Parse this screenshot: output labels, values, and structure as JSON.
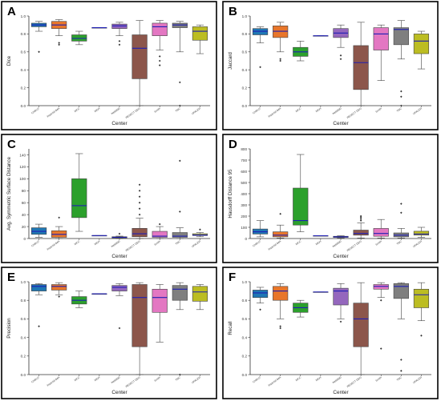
{
  "panel_letters": [
    "A",
    "B",
    "C",
    "D",
    "E",
    "F"
  ],
  "colors": {
    "frame": "#000000",
    "median": "#1f1fb4",
    "axis": "#333333"
  },
  "chart_data": [
    {
      "type": "box",
      "letter": "A",
      "xlabel": "Center",
      "ylabel": "Dice",
      "ylim": [
        0.0,
        1.0
      ],
      "yticks": [
        0.0,
        0.2,
        0.4,
        0.6,
        0.8,
        1.0
      ],
      "grid": false,
      "categories": [
        "CHRUT",
        "Imperial-IMA",
        "MCC",
        "MGH",
        "NeMIND",
        "RESECT DEG",
        "Smith",
        "TMC",
        "UPALER"
      ],
      "colors": [
        "#1f77b4",
        "#e8762b",
        "#2ca02c",
        "#6a5acd",
        "#9467bd",
        "#8c564b",
        "#e377c2",
        "#7f7f7f",
        "#bcbd22"
      ],
      "boxes": [
        {
          "min": 0.83,
          "q1": 0.88,
          "median": 0.9,
          "q3": 0.92,
          "max": 0.94,
          "outliers": [
            0.6
          ]
        },
        {
          "min": 0.78,
          "q1": 0.86,
          "median": 0.9,
          "q3": 0.94,
          "max": 0.96,
          "outliers": [
            0.7,
            0.68
          ]
        },
        {
          "min": 0.68,
          "q1": 0.72,
          "median": 0.75,
          "q3": 0.79,
          "max": 0.83,
          "outliers": []
        },
        {
          "min": 0.87,
          "q1": 0.87,
          "median": 0.87,
          "q3": 0.87,
          "max": 0.87,
          "outliers": []
        },
        {
          "min": 0.78,
          "q1": 0.86,
          "median": 0.89,
          "q3": 0.91,
          "max": 0.93,
          "outliers": [
            0.72,
            0.68
          ]
        },
        {
          "min": 0.0,
          "q1": 0.3,
          "median": 0.64,
          "q3": 0.79,
          "max": 0.95,
          "outliers": []
        },
        {
          "min": 0.62,
          "q1": 0.78,
          "median": 0.88,
          "q3": 0.92,
          "max": 0.95,
          "outliers": [
            0.55,
            0.5,
            0.45
          ]
        },
        {
          "min": 0.6,
          "q1": 0.87,
          "median": 0.9,
          "q3": 0.92,
          "max": 0.94,
          "outliers": [
            0.26,
            0.0
          ]
        },
        {
          "min": 0.58,
          "q1": 0.73,
          "median": 0.83,
          "q3": 0.88,
          "max": 0.9,
          "outliers": []
        }
      ]
    },
    {
      "type": "box",
      "letter": "B",
      "xlabel": "Center",
      "ylabel": "Jaccard",
      "ylim": [
        0.0,
        1.0
      ],
      "yticks": [
        0.0,
        0.2,
        0.4,
        0.6,
        0.8,
        1.0
      ],
      "grid": false,
      "categories": [
        "CHRUT",
        "Imperial-IMA",
        "MCC",
        "MGH",
        "NeMIND",
        "RESECT DEG",
        "Smith",
        "TMC",
        "UPALER"
      ],
      "colors": [
        "#1f77b4",
        "#e8762b",
        "#2ca02c",
        "#6a5acd",
        "#9467bd",
        "#8c564b",
        "#e377c2",
        "#7f7f7f",
        "#bcbd22"
      ],
      "boxes": [
        {
          "min": 0.7,
          "q1": 0.79,
          "median": 0.83,
          "q3": 0.86,
          "max": 0.88,
          "outliers": [
            0.43
          ]
        },
        {
          "min": 0.6,
          "q1": 0.76,
          "median": 0.83,
          "q3": 0.89,
          "max": 0.93,
          "outliers": [
            0.52,
            0.5
          ]
        },
        {
          "min": 0.5,
          "q1": 0.55,
          "median": 0.6,
          "q3": 0.65,
          "max": 0.72,
          "outliers": []
        },
        {
          "min": 0.78,
          "q1": 0.78,
          "median": 0.78,
          "q3": 0.78,
          "max": 0.78,
          "outliers": []
        },
        {
          "min": 0.65,
          "q1": 0.76,
          "median": 0.81,
          "q3": 0.86,
          "max": 0.9,
          "outliers": [
            0.56,
            0.52
          ]
        },
        {
          "min": 0.0,
          "q1": 0.18,
          "median": 0.48,
          "q3": 0.67,
          "max": 0.93,
          "outliers": []
        },
        {
          "min": 0.28,
          "q1": 0.62,
          "median": 0.8,
          "q3": 0.87,
          "max": 0.9,
          "outliers": []
        },
        {
          "min": 0.52,
          "q1": 0.68,
          "median": 0.85,
          "q3": 0.87,
          "max": 0.95,
          "outliers": [
            0.16,
            0.1,
            0.0
          ]
        },
        {
          "min": 0.41,
          "q1": 0.58,
          "median": 0.72,
          "q3": 0.8,
          "max": 0.83,
          "outliers": []
        }
      ]
    },
    {
      "type": "box",
      "letter": "C",
      "xlabel": "Center",
      "ylabel": "Avg. Symmetric Surface Distance",
      "ylim": [
        0,
        150
      ],
      "yticks": [
        0,
        20,
        40,
        60,
        80,
        100,
        120,
        140
      ],
      "grid": false,
      "categories": [
        "CHRUT",
        "Imperial-IMA",
        "MCC",
        "MGH",
        "NeMIND",
        "RESECT DEG",
        "Smith",
        "TMC",
        "UPALER"
      ],
      "colors": [
        "#1f77b4",
        "#e8762b",
        "#2ca02c",
        "#6a5acd",
        "#9467bd",
        "#8c564b",
        "#e377c2",
        "#7f7f7f",
        "#bcbd22"
      ],
      "boxes": [
        {
          "min": 2,
          "q1": 7,
          "median": 12,
          "q3": 18,
          "max": 24,
          "outliers": []
        },
        {
          "min": 0,
          "q1": 2,
          "median": 7,
          "q3": 13,
          "max": 20,
          "outliers": [
            35
          ]
        },
        {
          "min": 12,
          "q1": 35,
          "median": 55,
          "q3": 100,
          "max": 142,
          "outliers": []
        },
        {
          "min": 5,
          "q1": 5,
          "median": 5,
          "q3": 5,
          "max": 5,
          "outliers": []
        },
        {
          "min": 0,
          "q1": 1,
          "median": 2,
          "q3": 3,
          "max": 4,
          "outliers": [
            8
          ]
        },
        {
          "min": 0,
          "q1": 3,
          "median": 8,
          "q3": 17,
          "max": 34,
          "outliers": [
            40,
            50,
            60,
            70,
            80,
            90
          ]
        },
        {
          "min": 0,
          "q1": 2,
          "median": 4,
          "q3": 12,
          "max": 20,
          "outliers": [
            24
          ]
        },
        {
          "min": 0,
          "q1": 2,
          "median": 4,
          "q3": 10,
          "max": 18,
          "outliers": [
            45,
            130
          ]
        },
        {
          "min": 3,
          "q1": 5,
          "median": 6,
          "q3": 8,
          "max": 10,
          "outliers": [
            15
          ]
        }
      ]
    },
    {
      "type": "box",
      "letter": "D",
      "xlabel": "Center",
      "ylabel": "Hausdorff Distance 95",
      "ylim": [
        0,
        800
      ],
      "yticks": [
        0,
        100,
        200,
        300,
        400,
        500,
        600,
        700,
        800
      ],
      "grid": false,
      "categories": [
        "CHRUT",
        "Imperial-IMA",
        "MCC",
        "MGH",
        "NeMIND",
        "RESECT DEG",
        "Smith",
        "TMC",
        "UPALER"
      ],
      "colors": [
        "#1f77b4",
        "#e8762b",
        "#2ca02c",
        "#6a5acd",
        "#9467bd",
        "#8c564b",
        "#e377c2",
        "#7f7f7f",
        "#bcbd22"
      ],
      "boxes": [
        {
          "min": 15,
          "q1": 40,
          "median": 60,
          "q3": 85,
          "max": 160,
          "outliers": []
        },
        {
          "min": 5,
          "q1": 15,
          "median": 30,
          "q3": 60,
          "max": 120,
          "outliers": [
            220
          ]
        },
        {
          "min": 60,
          "q1": 120,
          "median": 160,
          "q3": 450,
          "max": 750,
          "outliers": []
        },
        {
          "min": 25,
          "q1": 25,
          "median": 25,
          "q3": 25,
          "max": 25,
          "outliers": []
        },
        {
          "min": 5,
          "q1": 10,
          "median": 15,
          "q3": 20,
          "max": 25,
          "outliers": []
        },
        {
          "min": 5,
          "q1": 30,
          "median": 45,
          "q3": 75,
          "max": 140,
          "outliers": [
            160,
            175,
            190,
            200
          ]
        },
        {
          "min": 5,
          "q1": 20,
          "median": 45,
          "q3": 90,
          "max": 170,
          "outliers": []
        },
        {
          "min": 5,
          "q1": 15,
          "median": 30,
          "q3": 50,
          "max": 90,
          "outliers": [
            230,
            310
          ]
        },
        {
          "min": 10,
          "q1": 30,
          "median": 40,
          "q3": 65,
          "max": 100,
          "outliers": []
        }
      ]
    },
    {
      "type": "box",
      "letter": "E",
      "xlabel": "Center",
      "ylabel": "Precision",
      "ylim": [
        0.0,
        1.0
      ],
      "yticks": [
        0.0,
        0.2,
        0.4,
        0.6,
        0.8,
        1.0
      ],
      "grid": false,
      "categories": [
        "CHRUT",
        "Imperial-IMA",
        "MCC",
        "MGH",
        "NeMIND",
        "RESECT DEG",
        "Smith",
        "TMC",
        "UPALER"
      ],
      "colors": [
        "#1f77b4",
        "#e8762b",
        "#2ca02c",
        "#6a5acd",
        "#9467bd",
        "#8c564b",
        "#e377c2",
        "#7f7f7f",
        "#bcbd22"
      ],
      "boxes": [
        {
          "min": 0.86,
          "q1": 0.9,
          "median": 0.95,
          "q3": 0.97,
          "max": 0.98,
          "outliers": [
            0.52
          ]
        },
        {
          "min": 0.86,
          "q1": 0.91,
          "median": 0.95,
          "q3": 0.97,
          "max": 0.99,
          "outliers": [
            0.84
          ]
        },
        {
          "min": 0.72,
          "q1": 0.76,
          "median": 0.8,
          "q3": 0.84,
          "max": 0.9,
          "outliers": []
        },
        {
          "min": 0.87,
          "q1": 0.87,
          "median": 0.87,
          "q3": 0.87,
          "max": 0.87,
          "outliers": []
        },
        {
          "min": 0.85,
          "q1": 0.9,
          "median": 0.94,
          "q3": 0.96,
          "max": 0.98,
          "outliers": [
            0.5
          ]
        },
        {
          "min": 0.0,
          "q1": 0.3,
          "median": 0.83,
          "q3": 0.97,
          "max": 0.99,
          "outliers": []
        },
        {
          "min": 0.35,
          "q1": 0.67,
          "median": 0.83,
          "q3": 0.92,
          "max": 0.97,
          "outliers": []
        },
        {
          "min": 0.7,
          "q1": 0.8,
          "median": 0.92,
          "q3": 0.96,
          "max": 0.99,
          "outliers": [
            0.0
          ]
        },
        {
          "min": 0.7,
          "q1": 0.79,
          "median": 0.89,
          "q3": 0.95,
          "max": 0.97,
          "outliers": []
        }
      ]
    },
    {
      "type": "box",
      "letter": "F",
      "xlabel": "Center",
      "ylabel": "Recall",
      "ylim": [
        0.0,
        1.0
      ],
      "yticks": [
        0.0,
        0.2,
        0.4,
        0.6,
        0.8,
        1.0
      ],
      "grid": false,
      "categories": [
        "CHRUT",
        "Imperial-IMA",
        "MCC",
        "MGH",
        "NeMIND",
        "RESECT DEG",
        "Smith",
        "TMC",
        "UPALER"
      ],
      "colors": [
        "#1f77b4",
        "#e8762b",
        "#2ca02c",
        "#6a5acd",
        "#9467bd",
        "#8c564b",
        "#e377c2",
        "#7f7f7f",
        "#bcbd22"
      ],
      "boxes": [
        {
          "min": 0.77,
          "q1": 0.83,
          "median": 0.88,
          "q3": 0.91,
          "max": 0.94,
          "outliers": [
            0.7
          ]
        },
        {
          "min": 0.6,
          "q1": 0.8,
          "median": 0.9,
          "q3": 0.95,
          "max": 0.98,
          "outliers": [
            0.52,
            0.5
          ]
        },
        {
          "min": 0.62,
          "q1": 0.67,
          "median": 0.72,
          "q3": 0.77,
          "max": 0.8,
          "outliers": []
        },
        {
          "min": 0.89,
          "q1": 0.89,
          "median": 0.89,
          "q3": 0.89,
          "max": 0.89,
          "outliers": []
        },
        {
          "min": 0.6,
          "q1": 0.75,
          "median": 0.9,
          "q3": 0.93,
          "max": 0.98,
          "outliers": [
            0.57
          ]
        },
        {
          "min": 0.0,
          "q1": 0.3,
          "median": 0.6,
          "q3": 0.77,
          "max": 0.99,
          "outliers": []
        },
        {
          "min": 0.83,
          "q1": 0.92,
          "median": 0.95,
          "q3": 0.97,
          "max": 0.99,
          "outliers": [
            0.8,
            0.28
          ]
        },
        {
          "min": 0.6,
          "q1": 0.82,
          "median": 0.95,
          "q3": 0.98,
          "max": 0.99,
          "outliers": [
            0.16,
            0.04
          ]
        },
        {
          "min": 0.58,
          "q1": 0.72,
          "median": 0.86,
          "q3": 0.92,
          "max": 0.99,
          "outliers": [
            0.42
          ]
        }
      ]
    }
  ]
}
